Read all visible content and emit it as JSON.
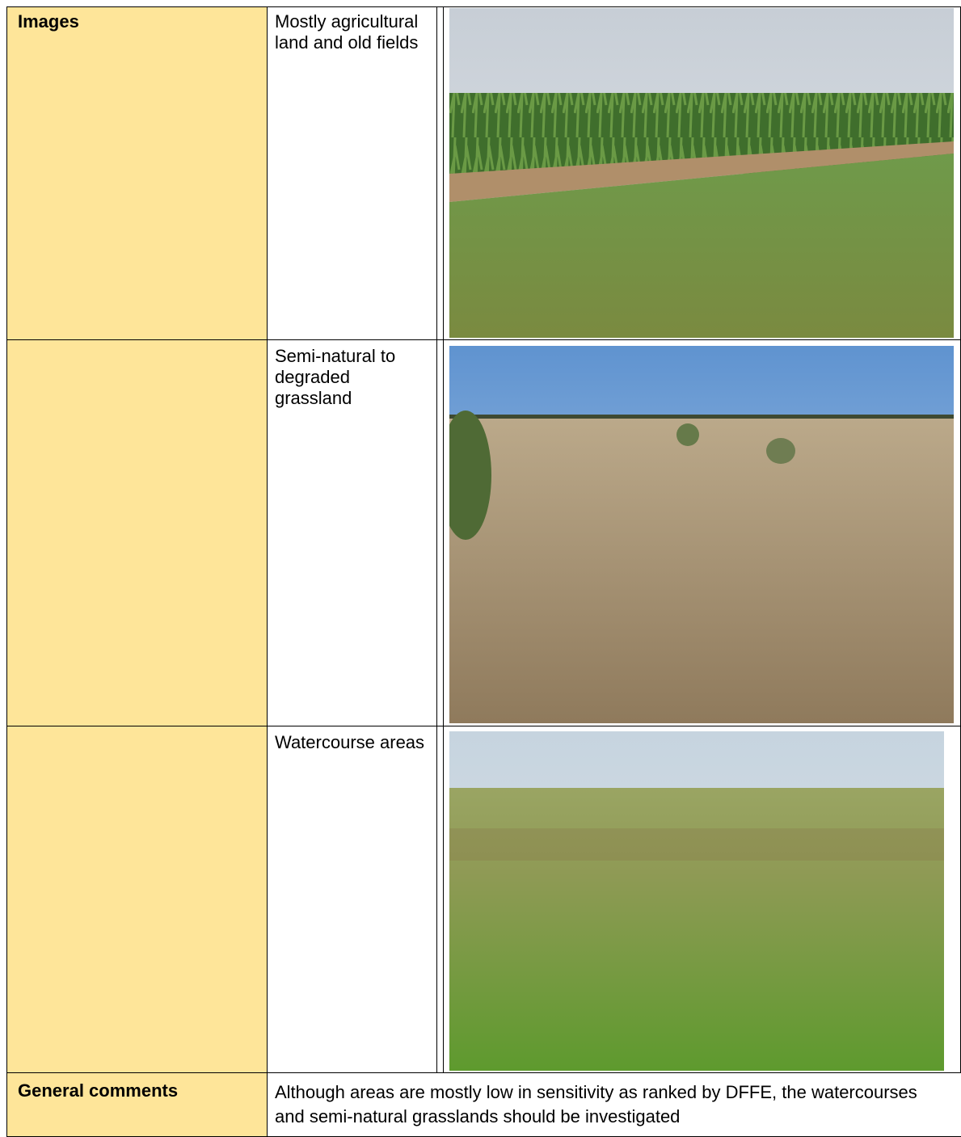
{
  "table": {
    "rows": [
      {
        "header": "Images",
        "caption": "Mostly agricultural land and old fields"
      },
      {
        "caption": "Semi-natural to degraded grassland"
      },
      {
        "caption": "Watercourse areas"
      }
    ],
    "comments": {
      "header": "General comments",
      "text": "Although areas are mostly low in sensitivity as ranked by DFFE, the watercourses and semi-natural grasslands should be investigated"
    }
  }
}
